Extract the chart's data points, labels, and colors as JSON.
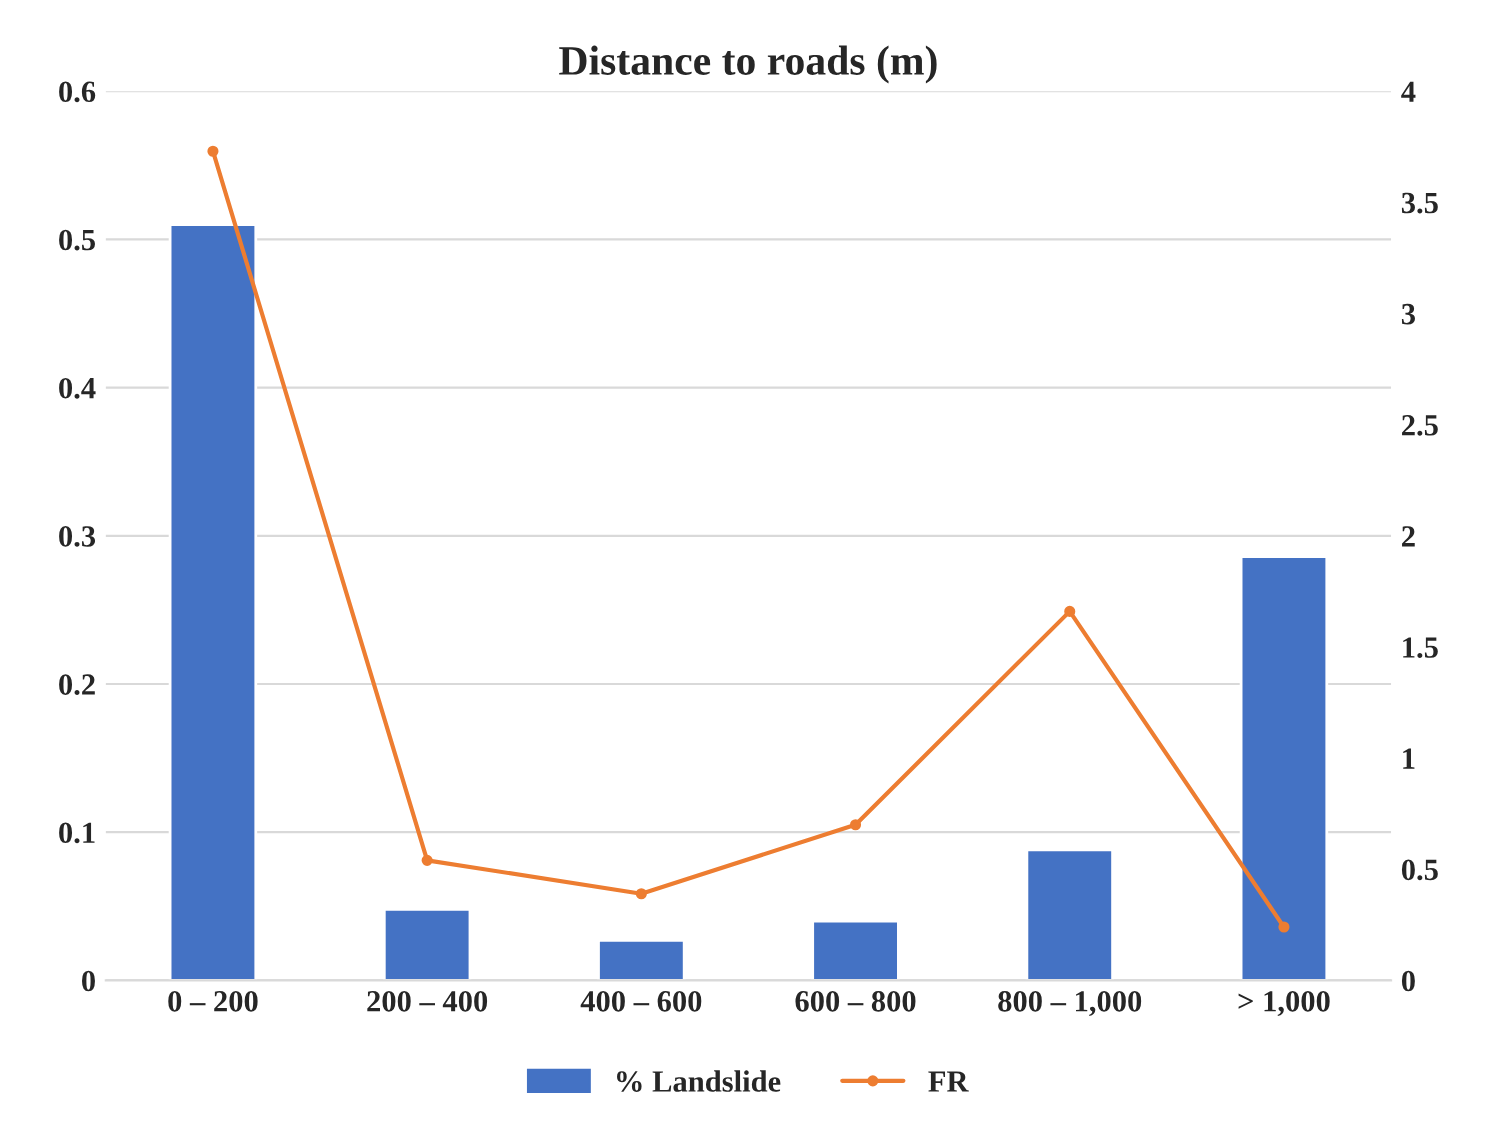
{
  "chart_data": {
    "type": "bar",
    "title": "Distance to roads (m)",
    "categories": [
      "0 – 200",
      "200 – 400",
      "400 – 600",
      "600 – 800",
      "800 – 1,000",
      "> 1,000"
    ],
    "series": [
      {
        "name": "% Landslide",
        "color": "#4472c4",
        "values": [
          0.51,
          0.048,
          0.027,
          0.04,
          0.088,
          0.286
        ]
      },
      {
        "name": "FR",
        "type": "line",
        "axis": "y2",
        "color": "#ed7d31",
        "marker": "circle",
        "values": [
          3.73,
          0.54,
          0.39,
          0.7,
          1.66,
          0.24
        ]
      }
    ],
    "ylim": [
      0,
      0.6
    ],
    "yticks": [
      0,
      0.1,
      0.2,
      0.3,
      0.4,
      0.5,
      0.6
    ],
    "y2lim": [
      0,
      4
    ],
    "y2ticks": [
      0,
      0.5,
      1,
      1.5,
      2,
      2.5,
      3,
      3.5,
      4
    ],
    "grid": "y",
    "legend": "bottom"
  }
}
